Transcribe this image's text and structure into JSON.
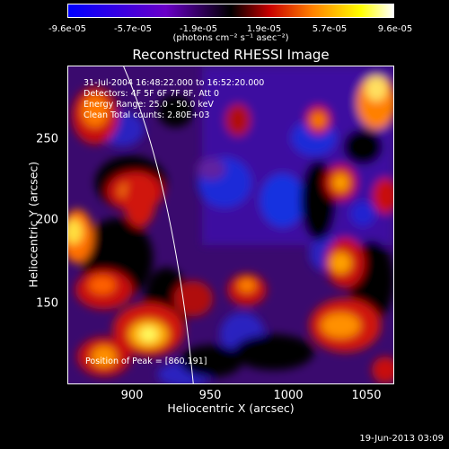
{
  "colorbar": {
    "ticks": [
      "-9.6e-05",
      "-5.7e-05",
      "-1.9e-05",
      "1.9e-05",
      "5.7e-05",
      "9.6e-05"
    ],
    "unit": "(photons cm⁻² s⁻¹ asec⁻²)",
    "colors": [
      "#0000ff",
      "#6a00c8",
      "#000000",
      "#c80000",
      "#ff8000",
      "#ffff00",
      "#ffffff"
    ]
  },
  "title": "Reconstructed RHESSI Image",
  "info": {
    "line1": "31-Jul-2004 16:48:22.000 to 16:52:20.000",
    "line2": "Detectors: 4F 5F 6F 7F 8F, Att 0",
    "line3": "Energy Range: 25.0 - 50.0 keV",
    "line4": "Clean    Total counts: 2.80E+03"
  },
  "peak_text": "Position of Peak = [860,191]",
  "axes": {
    "xlabel": "Heliocentric X (arcsec)",
    "ylabel": "Heliocentric Y (arcsec)",
    "xticks": [
      "900",
      "950",
      "1000",
      "1050"
    ],
    "yticks": [
      "150",
      "200",
      "250"
    ],
    "xrange": [
      862,
      1062
    ],
    "yrange": [
      98,
      293
    ]
  },
  "footer": "19-Jun-2013 03:09"
}
